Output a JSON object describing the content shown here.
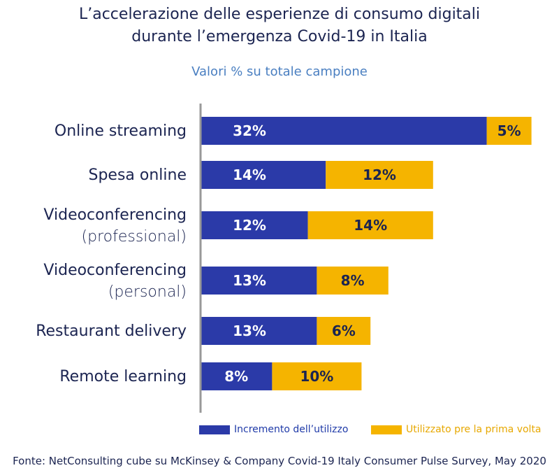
{
  "colors": {
    "increase": "#2b3aa8",
    "first_time": "#f5b400",
    "axis": "#999999"
  },
  "chart_data": {
    "type": "bar",
    "orientation": "horizontal",
    "stacked": true,
    "title_line1": "L’accelerazione delle esperienze di consumo digitali",
    "title_line2": "durante l’emergenza Covid-19 in Italia",
    "subtitle": "Valori % su totale campione",
    "categories": [
      {
        "main": "Online streaming",
        "sub": ""
      },
      {
        "main": "Spesa online",
        "sub": ""
      },
      {
        "main": "Videoconferencing",
        "sub": "(professional)"
      },
      {
        "main": "Videoconferencing",
        "sub": "(personal)"
      },
      {
        "main": "Restaurant delivery",
        "sub": ""
      },
      {
        "main": "Remote learning",
        "sub": ""
      }
    ],
    "series": [
      {
        "name": "Incremento dell’utilizzo",
        "values": [
          32,
          14,
          12,
          13,
          13,
          8
        ]
      },
      {
        "name": "Utilizzato pre la prima volta",
        "values": [
          5,
          12,
          14,
          8,
          6,
          10
        ]
      }
    ],
    "value_labels": [
      [
        "32%",
        "5%"
      ],
      [
        "14%",
        "12%"
      ],
      [
        "12%",
        "14%"
      ],
      [
        "13%",
        "8%"
      ],
      [
        "13%",
        "6%"
      ],
      [
        "8%",
        "10%"
      ]
    ],
    "legend_position": "bottom-right"
  },
  "source": "Fonte: NetConsulting cube su McKinsey & Company Covid-19 Italy Consumer Pulse Survey, May 2020"
}
